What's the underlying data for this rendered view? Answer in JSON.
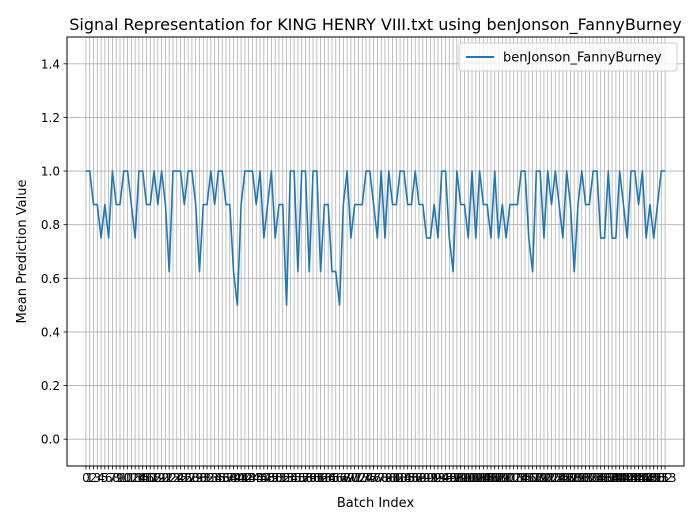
{
  "chart_data": {
    "type": "line",
    "title": "Signal Representation for KING HENRY VIII.txt using benJonson_FannyBurney",
    "xlabel": "Batch Index",
    "ylabel": "Mean Prediction Value",
    "xlim": [
      -5,
      158
    ],
    "ylim": [
      -0.1,
      1.5
    ],
    "yticks": [
      0.0,
      0.2,
      0.4,
      0.6,
      0.8,
      1.0,
      1.2,
      1.4
    ],
    "xticks_first": 0,
    "xticks_last": 153,
    "grid": true,
    "legend": {
      "placement": "top-right"
    },
    "series": [
      {
        "name": "benJonson_FannyBurney",
        "color": "#1f77b4",
        "x_start": 0,
        "values": [
          1.0,
          1.0,
          0.875,
          0.875,
          0.75,
          0.875,
          0.75,
          1.0,
          0.875,
          0.875,
          1.0,
          1.0,
          0.875,
          0.75,
          1.0,
          1.0,
          0.875,
          0.875,
          1.0,
          0.875,
          1.0,
          0.875,
          0.625,
          1.0,
          1.0,
          1.0,
          0.875,
          1.0,
          1.0,
          0.875,
          0.625,
          0.875,
          0.875,
          1.0,
          0.875,
          1.0,
          1.0,
          0.875,
          0.875,
          0.625,
          0.5,
          0.875,
          1.0,
          1.0,
          1.0,
          0.875,
          1.0,
          0.75,
          0.875,
          1.0,
          0.75,
          0.875,
          0.875,
          0.5,
          1.0,
          1.0,
          0.625,
          1.0,
          1.0,
          0.625,
          1.0,
          1.0,
          0.625,
          0.875,
          0.875,
          0.625,
          0.625,
          0.5,
          0.875,
          1.0,
          0.75,
          0.875,
          0.875,
          0.875,
          1.0,
          1.0,
          0.875,
          0.75,
          1.0,
          0.75,
          1.0,
          0.875,
          0.875,
          1.0,
          1.0,
          0.875,
          0.875,
          1.0,
          0.875,
          0.875,
          0.75,
          0.75,
          0.875,
          0.75,
          1.0,
          1.0,
          0.75,
          0.625,
          1.0,
          0.875,
          0.875,
          0.75,
          1.0,
          0.75,
          1.0,
          0.875,
          0.875,
          0.75,
          1.0,
          0.75,
          0.875,
          0.75,
          0.875,
          0.875,
          0.875,
          1.0,
          1.0,
          0.75,
          0.625,
          1.0,
          1.0,
          0.75,
          1.0,
          0.875,
          1.0,
          0.875,
          0.75,
          1.0,
          0.875,
          0.625,
          0.875,
          1.0,
          0.875,
          0.875,
          1.0,
          1.0,
          0.75,
          0.75,
          1.0,
          0.75,
          0.75,
          1.0,
          0.875,
          0.75,
          1.0,
          1.0,
          0.875,
          1.0,
          0.75,
          0.875,
          0.75,
          0.875,
          1.0,
          1.0
        ]
      }
    ]
  }
}
